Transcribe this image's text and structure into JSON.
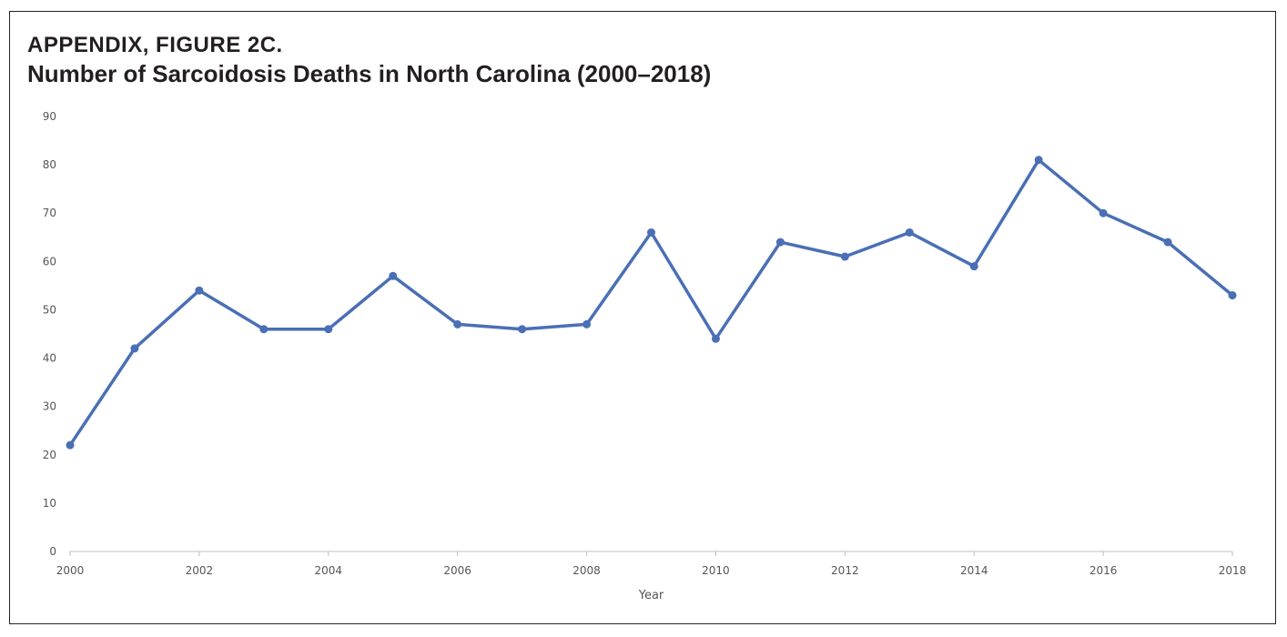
{
  "chart_data": {
    "type": "line",
    "kicker": "APPENDIX, FIGURE 2C.",
    "title": "Number of Sarcoidosis Deaths in North Carolina (2000–2018)",
    "xlabel": "Year",
    "ylabel": "",
    "x": [
      2000,
      2001,
      2002,
      2003,
      2004,
      2005,
      2006,
      2007,
      2008,
      2009,
      2010,
      2011,
      2012,
      2013,
      2014,
      2015,
      2016,
      2017,
      2018
    ],
    "series": [
      {
        "name": "Sarcoidosis deaths",
        "values": [
          22,
          42,
          54,
          46,
          46,
          57,
          47,
          46,
          47,
          66,
          44,
          64,
          61,
          66,
          59,
          81,
          70,
          64,
          53
        ],
        "color": "#4a6fb5"
      }
    ],
    "xticks": [
      "2000",
      "2002",
      "2004",
      "2006",
      "2008",
      "2010",
      "2012",
      "2014",
      "2016",
      "2018"
    ],
    "yticks": [
      "0",
      "10",
      "20",
      "30",
      "40",
      "50",
      "60",
      "70",
      "80",
      "90"
    ],
    "ylim": [
      0,
      90
    ],
    "xlim": [
      2000,
      2018
    ],
    "grid": false,
    "legend": "none"
  }
}
